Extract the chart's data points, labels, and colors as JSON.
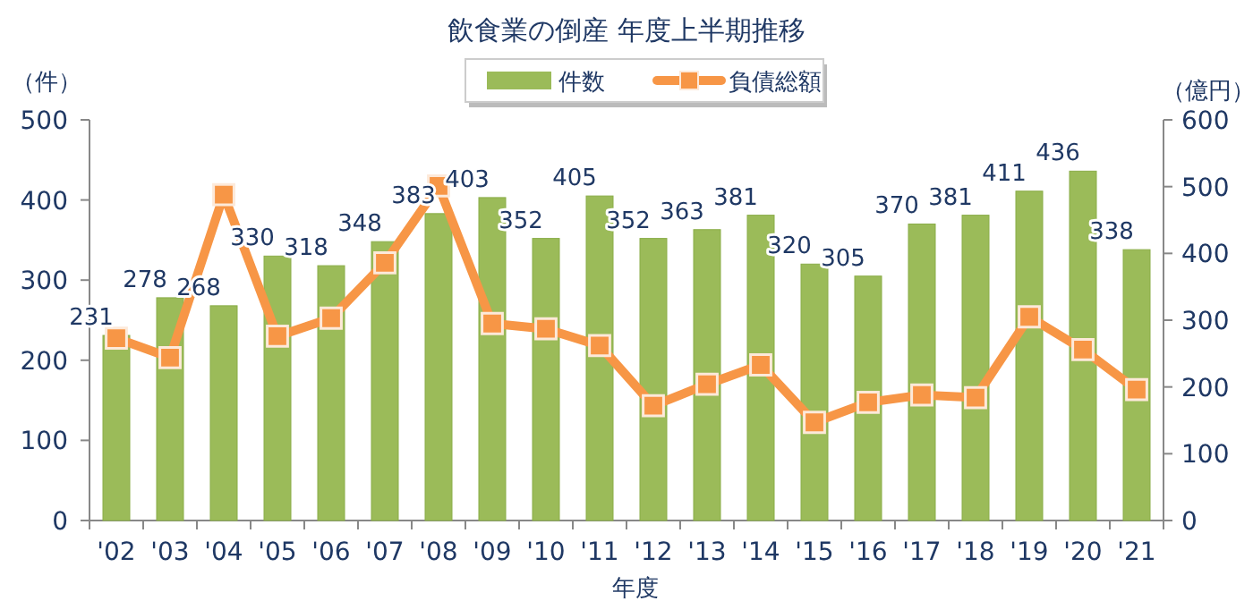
{
  "chart_data": {
    "type": "bar",
    "title": "飲食業の倒産 年度上半期推移",
    "xlabel": "年度",
    "ylabel": "（件）",
    "y2label": "（億円）",
    "categories": [
      "'02",
      "'03",
      "'04",
      "'05",
      "'06",
      "'07",
      "'08",
      "'09",
      "'10",
      "'11",
      "'12",
      "'13",
      "'14",
      "'15",
      "'16",
      "'17",
      "'18",
      "'19",
      "'20",
      "'21"
    ],
    "series": [
      {
        "name": "件数",
        "color": "#9bbb59",
        "values": [
          231,
          278,
          268,
          330,
          318,
          348,
          383,
          403,
          352,
          405,
          352,
          363,
          381,
          320,
          305,
          370,
          381,
          411,
          436,
          338
        ],
        "data_labels": true
      },
      {
        "name": "負債総額",
        "type": "line",
        "axis": "y2",
        "color": "#f79646",
        "marker": "square",
        "values": [
          273,
          244,
          488,
          276,
          303,
          386,
          501,
          295,
          287,
          262,
          172,
          204,
          233,
          147,
          177,
          188,
          184,
          305,
          256,
          196
        ]
      }
    ],
    "ylim": [
      0,
      500
    ],
    "yticks": [
      0,
      100,
      200,
      300,
      400,
      500
    ],
    "y2lim": [
      0,
      600
    ],
    "y2ticks": [
      0,
      100,
      200,
      300,
      400,
      500,
      600
    ],
    "legend": "top",
    "grid": false
  }
}
